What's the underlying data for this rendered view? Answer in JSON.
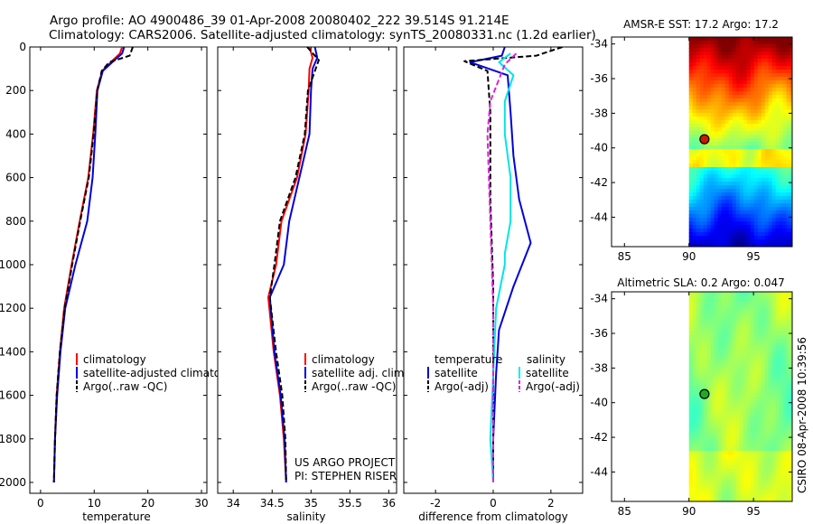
{
  "header": {
    "line1": "Argo profile: AO 4900486_39 01-Apr-2008 20080402_222 39.514S 91.214E",
    "line2": "Climatology: CARS2006. Satellite-adjusted climatology: synTS_20080331.nc (1.2d earlier)"
  },
  "footer": {
    "project_line1": "US ARGO PROJECT",
    "project_line2": "PI: STEPHEN RISER",
    "stamp": "CSIRO 08-Apr-2008 10:39:56"
  },
  "colors": {
    "climatology": "#ff0000",
    "satellite": "#0000dd",
    "argo": "#000000",
    "satellite_diff_salinity": "#00e5e5",
    "argo_diff_salinity": "#dd22dd",
    "marker_sst": "#cc1a00",
    "marker_sla": "#22aa22"
  },
  "chart_data": [
    {
      "id": "temperature",
      "type": "line",
      "title": "",
      "xlabel": "temperature",
      "ylabel": "",
      "xlim": [
        -2,
        31
      ],
      "ylim": [
        2050,
        0
      ],
      "xticks": [
        0,
        10,
        20,
        30
      ],
      "yticks": [
        0,
        200,
        400,
        600,
        800,
        1000,
        1200,
        1400,
        1600,
        1800,
        2000
      ],
      "legend": {
        "position": "lower-right",
        "entries": [
          "climatology",
          "satellite-adjusted climatology",
          "Argo(..raw -QC)"
        ]
      },
      "series": [
        {
          "name": "climatology",
          "color_key": "climatology",
          "dash": false,
          "points": [
            [
              15.2,
              0
            ],
            [
              14.8,
              30
            ],
            [
              13.5,
              60
            ],
            [
              11.5,
              110
            ],
            [
              10.5,
              200
            ],
            [
              9.8,
              400
            ],
            [
              8.9,
              600
            ],
            [
              7.3,
              800
            ],
            [
              5.8,
              1000
            ],
            [
              4.4,
              1200
            ],
            [
              3.6,
              1400
            ],
            [
              3.0,
              1600
            ],
            [
              2.7,
              1800
            ],
            [
              2.5,
              2000
            ]
          ]
        },
        {
          "name": "satellite-adjusted climatology",
          "color_key": "satellite",
          "dash": false,
          "points": [
            [
              15.6,
              0
            ],
            [
              15.2,
              30
            ],
            [
              13.8,
              60
            ],
            [
              11.6,
              110
            ],
            [
              10.6,
              200
            ],
            [
              10.2,
              400
            ],
            [
              9.7,
              600
            ],
            [
              8.7,
              800
            ],
            [
              6.5,
              1000
            ],
            [
              4.6,
              1200
            ],
            [
              3.7,
              1400
            ],
            [
              3.1,
              1600
            ],
            [
              2.7,
              1800
            ],
            [
              2.5,
              2000
            ]
          ]
        },
        {
          "name": "Argo(..raw -QC)",
          "color_key": "argo",
          "dash": true,
          "points": [
            [
              17.2,
              0
            ],
            [
              16.6,
              40
            ],
            [
              12.8,
              70
            ],
            [
              11.4,
              110
            ],
            [
              10.6,
              200
            ],
            [
              9.9,
              400
            ],
            [
              9.0,
              600
            ],
            [
              7.4,
              800
            ],
            [
              5.9,
              1000
            ],
            [
              4.5,
              1200
            ],
            [
              3.6,
              1400
            ],
            [
              3.0,
              1600
            ],
            [
              2.7,
              1800
            ],
            [
              2.5,
              2000
            ]
          ]
        }
      ]
    },
    {
      "id": "salinity",
      "type": "line",
      "title": "",
      "xlabel": "salinity",
      "ylabel": "",
      "xlim": [
        33.8,
        36.1
      ],
      "ylim": [
        2050,
        0
      ],
      "xticks": [
        34,
        34.5,
        35,
        35.5,
        36
      ],
      "yticks": [
        0,
        200,
        400,
        600,
        800,
        1000,
        1200,
        1400,
        1600,
        1800,
        2000
      ],
      "legend": {
        "position": "lower-right",
        "entries": [
          "climatology",
          "satellite adj. clim.",
          "Argo(..raw -QC)"
        ]
      },
      "series": [
        {
          "name": "climatology",
          "color_key": "climatology",
          "dash": false,
          "points": [
            [
              34.98,
              0
            ],
            [
              35.02,
              50
            ],
            [
              34.98,
              100
            ],
            [
              34.97,
              200
            ],
            [
              34.93,
              400
            ],
            [
              34.82,
              600
            ],
            [
              34.62,
              800
            ],
            [
              34.55,
              1000
            ],
            [
              34.45,
              1150
            ],
            [
              34.52,
              1400
            ],
            [
              34.6,
              1600
            ],
            [
              34.65,
              1800
            ],
            [
              34.68,
              2000
            ]
          ]
        },
        {
          "name": "satellite adj. clim.",
          "color_key": "satellite",
          "dash": false,
          "points": [
            [
              35.05,
              0
            ],
            [
              35.08,
              50
            ],
            [
              35.02,
              100
            ],
            [
              35.0,
              200
            ],
            [
              34.98,
              400
            ],
            [
              34.85,
              600
            ],
            [
              34.72,
              800
            ],
            [
              34.65,
              1000
            ],
            [
              34.47,
              1150
            ],
            [
              34.53,
              1400
            ],
            [
              34.61,
              1600
            ],
            [
              34.66,
              1800
            ],
            [
              34.68,
              2000
            ]
          ]
        },
        {
          "name": "Argo(..raw -QC)",
          "color_key": "argo",
          "dash": true,
          "points": [
            [
              34.95,
              0
            ],
            [
              35.1,
              60
            ],
            [
              35.05,
              110
            ],
            [
              34.96,
              200
            ],
            [
              34.92,
              400
            ],
            [
              34.8,
              600
            ],
            [
              34.6,
              800
            ],
            [
              34.53,
              1000
            ],
            [
              34.47,
              1150
            ],
            [
              34.55,
              1400
            ],
            [
              34.63,
              1600
            ],
            [
              34.67,
              1800
            ],
            [
              34.68,
              2000
            ]
          ]
        }
      ]
    },
    {
      "id": "difference",
      "type": "line",
      "title": "",
      "xlabel": "difference from climatology",
      "ylabel": "",
      "xlim": [
        -3.1,
        3.1
      ],
      "ylim": [
        2050,
        0
      ],
      "xticks": [
        -2,
        0,
        2
      ],
      "yticks": [
        0,
        200,
        400,
        600,
        800,
        1000,
        1200,
        1400,
        1600,
        1800,
        2000
      ],
      "legend": {
        "position": "lower-right",
        "temperature_label": "temperature",
        "salinity_label": "salinity",
        "entries": [
          "satellite",
          "Argo(-adj)",
          "satellite",
          "Argo(-adj)"
        ]
      },
      "series": [
        {
          "name": "temperature satellite",
          "color_key": "satellite",
          "dash": false,
          "points": [
            [
              0.4,
              0
            ],
            [
              0.3,
              40
            ],
            [
              -0.8,
              70
            ],
            [
              0.5,
              130
            ],
            [
              0.6,
              300
            ],
            [
              0.7,
              500
            ],
            [
              0.9,
              700
            ],
            [
              1.3,
              900
            ],
            [
              0.7,
              1100
            ],
            [
              0.2,
              1300
            ],
            [
              0.1,
              1500
            ],
            [
              0.0,
              1800
            ],
            [
              0.0,
              2000
            ]
          ]
        },
        {
          "name": "temperature Argo(-adj)",
          "color_key": "argo",
          "dash": true,
          "points": [
            [
              2.4,
              0
            ],
            [
              1.5,
              40
            ],
            [
              -1.0,
              65
            ],
            [
              -0.2,
              110
            ],
            [
              -0.1,
              300
            ],
            [
              -0.1,
              500
            ],
            [
              -0.1,
              700
            ],
            [
              -0.05,
              900
            ],
            [
              0.0,
              1100
            ],
            [
              0.0,
              1300
            ],
            [
              0.0,
              1500
            ],
            [
              0.0,
              1800
            ],
            [
              0.0,
              2000
            ]
          ]
        },
        {
          "name": "salinity satellite",
          "color_key": "satellite_diff_salinity",
          "dash": false,
          "points": [
            [
              0.6,
              30
            ],
            [
              0.2,
              70
            ],
            [
              0.7,
              130
            ],
            [
              0.4,
              250
            ],
            [
              0.4,
              400
            ],
            [
              0.6,
              600
            ],
            [
              0.6,
              800
            ],
            [
              0.4,
              950
            ],
            [
              0.4,
              1000
            ],
            [
              0.1,
              1200
            ],
            [
              0.0,
              1500
            ],
            [
              -0.1,
              1800
            ],
            [
              0.0,
              2000
            ]
          ]
        },
        {
          "name": "salinity Argo(-adj)",
          "color_key": "argo_diff_salinity",
          "dash": true,
          "points": [
            [
              0.8,
              30
            ],
            [
              0.4,
              80
            ],
            [
              -0.1,
              250
            ],
            [
              -0.2,
              400
            ],
            [
              -0.15,
              600
            ],
            [
              -0.1,
              800
            ],
            [
              -0.05,
              1000
            ],
            [
              0.0,
              1200
            ],
            [
              0.0,
              1500
            ],
            [
              0.0,
              1800
            ],
            [
              0.0,
              2000
            ]
          ]
        }
      ]
    },
    {
      "id": "amsr_sst_map",
      "type": "heatmap",
      "title": "AMSR-E SST: 17.2  Argo: 17.2",
      "xlabel": "",
      "ylabel": "",
      "xlim": [
        84,
        98
      ],
      "ylim": [
        -45.7,
        -33.6
      ],
      "xticks": [
        85,
        90,
        95
      ],
      "yticks": [
        -34,
        -36,
        -38,
        -40,
        -42,
        -44
      ],
      "data_xlim": [
        90,
        98
      ],
      "marker": {
        "lon": 91.2,
        "lat": -39.5
      }
    },
    {
      "id": "altimetric_sla_map",
      "type": "heatmap",
      "title": "Altimetric SLA: 0.2  Argo: 0.047",
      "xlabel": "",
      "ylabel": "",
      "xlim": [
        84,
        98
      ],
      "ylim": [
        -45.7,
        -33.6
      ],
      "xticks": [
        85,
        90,
        95
      ],
      "yticks": [
        -34,
        -36,
        -38,
        -40,
        -42,
        -44
      ],
      "data_xlim": [
        90,
        98
      ],
      "marker": {
        "lon": 91.2,
        "lat": -39.5
      }
    }
  ]
}
